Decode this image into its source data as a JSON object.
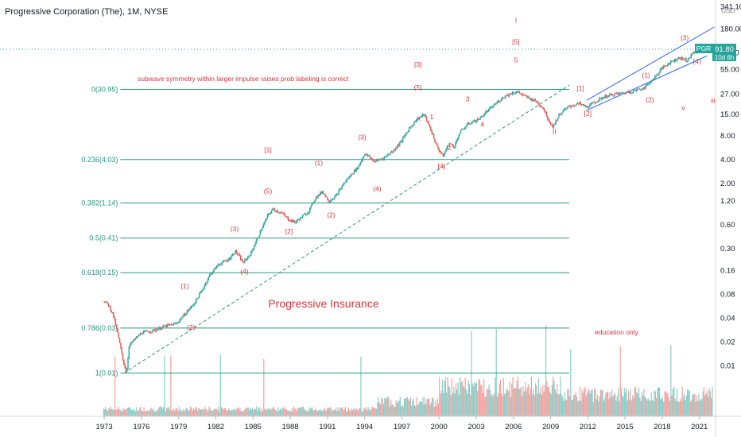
{
  "header": {
    "title": "Progressive Corporation (The), 1M, NYSE"
  },
  "price_badge": {
    "symbol": "PGR",
    "price": "91.80",
    "countdown": "10d 6h"
  },
  "chart_data": {
    "type": "candlestick",
    "title": "Progressive Insurance",
    "subtitle": "education only",
    "note": "subwave symmetry within larger impulse raises prob labeling is correct",
    "currency": "USD",
    "y_scale": "log",
    "x_range": [
      1972.8,
      2022.3
    ],
    "ylim": [
      0.0023,
      380
    ],
    "x_ticks": [
      "1973",
      "1976",
      "1979",
      "1982",
      "1985",
      "1988",
      "1991",
      "1994",
      "1997",
      "2000",
      "2003",
      "2006",
      "2009",
      "2012",
      "2015",
      "2018",
      "2021"
    ],
    "y_ticks": [
      "341.10",
      "180.00",
      "90.00",
      "55.00",
      "27.00",
      "15.00",
      "8.00",
      "4.00",
      "2.00",
      "1.20",
      "0.60",
      "0.30",
      "0.16",
      "0.08",
      "0.04",
      "0.02",
      "0.01"
    ],
    "price_path": [
      [
        1973.0,
        0.065
      ],
      [
        1973.3,
        0.06
      ],
      [
        1973.7,
        0.045
      ],
      [
        1974.1,
        0.025
      ],
      [
        1974.5,
        0.012
      ],
      [
        1974.8,
        0.008
      ],
      [
        1975.0,
        0.018
      ],
      [
        1975.5,
        0.022
      ],
      [
        1976.0,
        0.026
      ],
      [
        1977.0,
        0.028
      ],
      [
        1978.0,
        0.032
      ],
      [
        1978.8,
        0.034
      ],
      [
        1979.5,
        0.045
      ],
      [
        1980.2,
        0.06
      ],
      [
        1980.8,
        0.085
      ],
      [
        1981.5,
        0.14
      ],
      [
        1982.2,
        0.19
      ],
      [
        1983.0,
        0.22
      ],
      [
        1983.6,
        0.28
      ],
      [
        1984.2,
        0.2
      ],
      [
        1984.8,
        0.26
      ],
      [
        1985.6,
        0.5
      ],
      [
        1986.2,
        0.8
      ],
      [
        1986.6,
        0.95
      ],
      [
        1987.3,
        0.85
      ],
      [
        1987.9,
        0.7
      ],
      [
        1988.4,
        0.65
      ],
      [
        1988.9,
        0.75
      ],
      [
        1989.5,
        0.9
      ],
      [
        1990.0,
        1.3
      ],
      [
        1990.6,
        1.6
      ],
      [
        1991.1,
        1.2
      ],
      [
        1991.7,
        1.4
      ],
      [
        1992.3,
        2.0
      ],
      [
        1993.0,
        2.7
      ],
      [
        1993.5,
        3.3
      ],
      [
        1994.0,
        4.8
      ],
      [
        1994.8,
        3.8
      ],
      [
        1995.5,
        4.2
      ],
      [
        1996.3,
        5.2
      ],
      [
        1997.0,
        7.0
      ],
      [
        1997.6,
        10.0
      ],
      [
        1998.2,
        13.0
      ],
      [
        1998.8,
        15.0
      ],
      [
        1999.4,
        9.0
      ],
      [
        1999.8,
        6.0
      ],
      [
        2000.3,
        4.4
      ],
      [
        2000.8,
        6.5
      ],
      [
        2001.2,
        5.8
      ],
      [
        2001.7,
        9.0
      ],
      [
        2002.4,
        11.5
      ],
      [
        2003.2,
        13.0
      ],
      [
        2003.8,
        16.0
      ],
      [
        2004.5,
        20.0
      ],
      [
        2005.2,
        25.0
      ],
      [
        2005.9,
        28.0
      ],
      [
        2006.3,
        29.0
      ],
      [
        2007.0,
        25.0
      ],
      [
        2007.8,
        22.0
      ],
      [
        2008.4,
        18.0
      ],
      [
        2008.9,
        12.0
      ],
      [
        2009.2,
        10.5
      ],
      [
        2009.7,
        15.0
      ],
      [
        2010.5,
        19.0
      ],
      [
        2011.3,
        20.5
      ],
      [
        2011.9,
        18.5
      ],
      [
        2012.5,
        21.0
      ],
      [
        2013.3,
        25.0
      ],
      [
        2014.2,
        27.0
      ],
      [
        2015.0,
        28.0
      ],
      [
        2015.8,
        30.0
      ],
      [
        2016.6,
        33.0
      ],
      [
        2017.4,
        44.0
      ],
      [
        2018.0,
        58.0
      ],
      [
        2018.6,
        68.0
      ],
      [
        2019.4,
        78.0
      ],
      [
        2020.0,
        72.0
      ],
      [
        2020.5,
        90.0
      ],
      [
        2021.0,
        98.0
      ],
      [
        2021.6,
        96.0
      ],
      [
        2021.9,
        91.8
      ]
    ],
    "fib_levels": [
      {
        "label": "0(30.95)",
        "value": 30.95
      },
      {
        "label": "0.236(4.03)",
        "value": 4.03
      },
      {
        "label": "0.382(1.14)",
        "value": 1.14
      },
      {
        "label": "0.5(0.41)",
        "value": 0.41
      },
      {
        "label": "0.618(0.15)",
        "value": 0.15
      },
      {
        "label": "0.786(0.03)",
        "value": 0.03
      },
      {
        "label": "1(0.01)",
        "value": 0.0081
      }
    ],
    "fib_range_x": [
      1974.3,
      2010.5
    ],
    "wave_labels": [
      {
        "text": "(1)",
        "x": 1979.5,
        "y": 0.095
      },
      {
        "text": "(2)",
        "x": 1980.0,
        "y": 0.0285
      },
      {
        "text": "(3)",
        "x": 1983.5,
        "y": 0.5
      },
      {
        "text": "(4)",
        "x": 1984.3,
        "y": 0.145
      },
      {
        "text": "(5)",
        "x": 1986.2,
        "y": 1.5
      },
      {
        "text": "[1]",
        "x": 1986.2,
        "y": 5.0
      },
      {
        "text": "[2]",
        "x": 1987.9,
        "y": 0.47
      },
      {
        "text": "(1)",
        "x": 1990.3,
        "y": 3.4
      },
      {
        "text": "(2)",
        "x": 1991.3,
        "y": 0.75
      },
      {
        "text": "(3)",
        "x": 1993.8,
        "y": 7.2
      },
      {
        "text": "(4)",
        "x": 1995.0,
        "y": 1.6
      },
      {
        "text": "(5)",
        "x": 1998.3,
        "y": 30.5
      },
      {
        "text": "[3]",
        "x": 1998.3,
        "y": 60.0
      },
      {
        "text": "1",
        "x": 1999.4,
        "y": 13.0
      },
      {
        "text": "2",
        "x": 2000.8,
        "y": 5.3
      },
      {
        "text": "[4]",
        "x": 2000.2,
        "y": 3.1
      },
      {
        "text": "3",
        "x": 2002.3,
        "y": 22.0
      },
      {
        "text": "4",
        "x": 2003.5,
        "y": 10.5
      },
      {
        "text": "5",
        "x": 2006.2,
        "y": 68.0
      },
      {
        "text": "[5]",
        "x": 2006.2,
        "y": 115.0
      },
      {
        "text": "I",
        "x": 2006.2,
        "y": 215.0
      },
      {
        "text": "II",
        "x": 2009.3,
        "y": 8.5
      },
      {
        "text": "[1]",
        "x": 2011.4,
        "y": 30.0
      },
      {
        "text": "[2]",
        "x": 2012.0,
        "y": 14.5
      },
      {
        "text": "(1)",
        "x": 2016.7,
        "y": 44.0
      },
      {
        "text": "(2)",
        "x": 2017.0,
        "y": 21.5
      },
      {
        "text": "(3)",
        "x": 2019.8,
        "y": 130.0
      },
      {
        "text": "(4)",
        "x": 2020.8,
        "y": 66.0
      },
      {
        "text": "v",
        "x": 2019.7,
        "y": 17.0
      },
      {
        "text": "iii",
        "x": 2022.1,
        "y": 21.0
      }
    ],
    "trendline": {
      "from": [
        1974.6,
        0.0081
      ],
      "to": [
        2010.5,
        35.0
      ]
    },
    "channel": {
      "lower_from": [
        2011.9,
        16.8
      ],
      "lower_to": [
        2021.6,
        82.0
      ],
      "upper_from": [
        2011.9,
        22.5
      ],
      "upper_to": [
        2022.2,
        190.0
      ]
    }
  },
  "colors": {
    "up": "#26a69a",
    "down": "#ef5350",
    "fib": "#26997b",
    "label": "#e0343a",
    "channel": "#2962ff",
    "volume_up": "#26a69a",
    "volume_down": "#ef5350"
  }
}
